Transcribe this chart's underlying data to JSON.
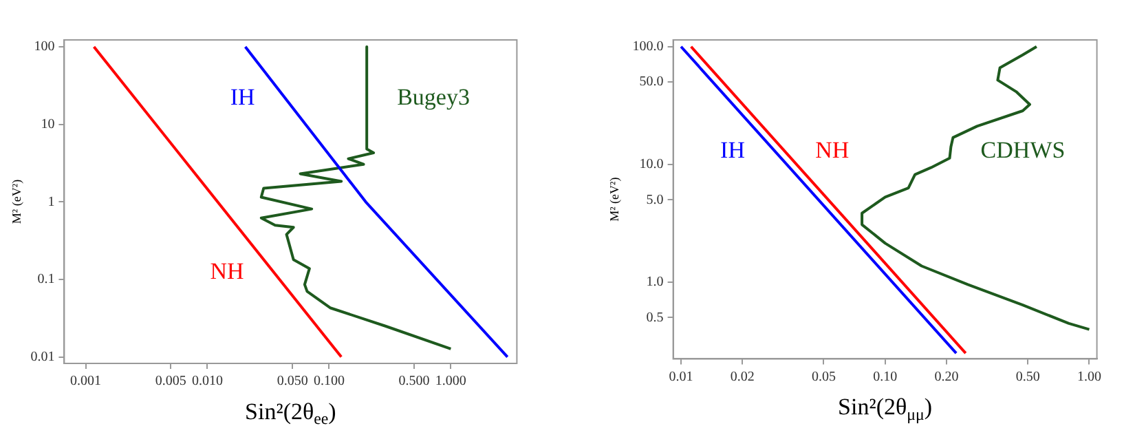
{
  "chart_data": [
    {
      "type": "line",
      "xlabel": "Sin²(2θ$_{ee}$)",
      "ylabel": "M² (eV²)",
      "log": "xy",
      "grid": false,
      "legend": false,
      "marker": "none",
      "xlim": [
        0.000667,
        3.49
      ],
      "ylim": [
        0.00825,
        122.7
      ],
      "xticks": [
        0.001,
        0.005,
        {
          "value": 0.01,
          "label": "0.010"
        },
        {
          "value": 0.05,
          "label": "0.050"
        },
        {
          "value": 0.1,
          "label": "0.100"
        },
        {
          "value": 0.5,
          "label": "0.500"
        },
        {
          "value": 1,
          "label": "1.000"
        }
      ],
      "yticks": [
        0.01,
        0.1,
        1,
        10,
        100
      ],
      "series": [
        {
          "name": "NH",
          "color": "#ff0000",
          "x": [
            0.00117,
            0.126
          ],
          "values": [
            100,
            0.01
          ]
        },
        {
          "name": "IH",
          "color": "#0000ff",
          "x": [
            0.0205,
            0.2,
            2.92
          ],
          "values": [
            100,
            1,
            0.01
          ]
        },
        {
          "name": "Bugey3",
          "color": "#1e5a1e",
          "x": [
            0.204,
            0.204,
            0.232,
            0.144,
            0.192,
            0.058,
            0.126,
            0.029,
            0.0277,
            0.072,
            0.0277,
            0.036,
            0.051,
            0.0447,
            0.051,
            0.069,
            0.063,
            0.066,
            0.102,
            0.29,
            1.0
          ],
          "values": [
            100,
            4.8,
            4.3,
            3.6,
            3.05,
            2.3,
            1.84,
            1.5,
            1.15,
            0.81,
            0.62,
            0.5,
            0.47,
            0.38,
            0.18,
            0.138,
            0.086,
            0.07,
            0.043,
            0.025,
            0.0127
          ]
        }
      ]
    },
    {
      "type": "line",
      "xlabel": "Sin²(2θ$_{μμ}$)",
      "ylabel": "M² (eV²)",
      "log": "xy",
      "grid": false,
      "legend": false,
      "marker": "none",
      "xlim": [
        0.00915,
        1.09
      ],
      "ylim": [
        0.223,
        114
      ],
      "xticks": [
        0.01,
        0.02,
        0.05,
        {
          "value": 0.1,
          "label": "0.10"
        },
        {
          "value": 0.2,
          "label": "0.20"
        },
        {
          "value": 0.5,
          "label": "0.50"
        },
        {
          "value": 1,
          "label": "1.00"
        }
      ],
      "yticks": [
        0.5,
        {
          "value": 1,
          "label": "1.0"
        },
        {
          "value": 5,
          "label": "5.0"
        },
        {
          "value": 10,
          "label": "10.0"
        },
        {
          "value": 50,
          "label": "50.0"
        },
        {
          "value": 100,
          "label": "100.0"
        }
      ],
      "series": [
        {
          "name": "IH",
          "color": "#0000ff",
          "x": [
            0.01,
            0.223
          ],
          "values": [
            100,
            0.249
          ]
        },
        {
          "name": "NH",
          "color": "#ff0000",
          "x": [
            0.0112,
            0.248
          ],
          "values": [
            100,
            0.249
          ]
        },
        {
          "name": "CDHWS",
          "color": "#1e5a1e",
          "x": [
            0.552,
            0.472,
            0.365,
            0.356,
            0.438,
            0.511,
            0.472,
            0.282,
            0.215,
            0.21,
            0.207,
            0.168,
            0.14,
            0.13,
            0.1,
            0.077,
            0.077,
            0.1,
            0.151,
            0.254,
            0.472,
            0.794,
            1.0
          ],
          "values": [
            100,
            85,
            66,
            52,
            41.5,
            32.3,
            28.5,
            21.1,
            16.9,
            14.1,
            11.3,
            9.4,
            8.2,
            6.3,
            5.27,
            3.85,
            3.08,
            2.14,
            1.37,
            0.955,
            0.64,
            0.446,
            0.397
          ]
        }
      ]
    }
  ]
}
